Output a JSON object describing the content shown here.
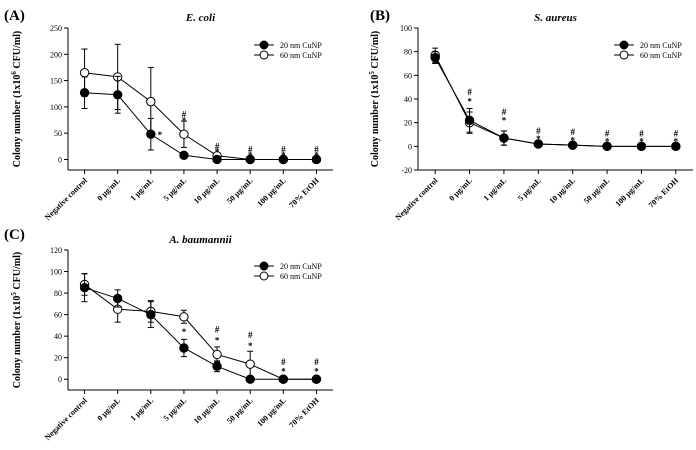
{
  "figure": {
    "legend_labels": [
      "20 nm CuNP",
      "60 nm CuNP"
    ],
    "colors": {
      "axis": "#000000",
      "series_20nm_fill": "#000000",
      "series_60nm_fill": "#ffffff"
    }
  },
  "chart_data": [
    {
      "type": "line",
      "panel_label": "(A)",
      "title": "E. coli",
      "ylabel_parts": [
        "Colony number (1x10",
        "6",
        " CFU/ml)"
      ],
      "xlabel": "",
      "categories": [
        "Negative control",
        "0 μg/mL",
        "1 μg/mL",
        "5 μg/mL",
        "10 μg/mL",
        "50 μg/mL",
        "100 μg/mL",
        "70% EtOH"
      ],
      "ylim": [
        -20,
        250
      ],
      "yticks": [
        0,
        50,
        100,
        150,
        200,
        250
      ],
      "legend_position": "top-right",
      "series": [
        {
          "name": "20 nm CuNP",
          "marker": "filled-circle",
          "values": [
            127,
            123,
            48,
            8,
            0,
            0,
            0,
            0
          ],
          "errors": [
            30,
            35,
            30,
            3,
            2,
            0,
            0,
            0
          ]
        },
        {
          "name": "60 nm CuNP",
          "marker": "open-circle",
          "values": [
            165,
            157,
            110,
            48,
            7,
            0,
            0,
            0
          ],
          "errors": [
            45,
            62,
            65,
            25,
            3,
            0,
            0,
            0
          ]
        }
      ],
      "annotations": [
        {
          "category_index": 2,
          "text": "*",
          "y": 48,
          "placement": "right"
        },
        {
          "category_index": 3,
          "text": "*",
          "y": 73
        },
        {
          "category_index": 3,
          "text": "#",
          "y": 86
        },
        {
          "category_index": 4,
          "text": "*",
          "y": 14
        },
        {
          "category_index": 4,
          "text": "#",
          "y": 25
        },
        {
          "category_index": 5,
          "text": "*",
          "y": 8
        },
        {
          "category_index": 5,
          "text": "#",
          "y": 19
        },
        {
          "category_index": 6,
          "text": "*",
          "y": 8
        },
        {
          "category_index": 6,
          "text": "#",
          "y": 19
        },
        {
          "category_index": 7,
          "text": "*",
          "y": 8
        },
        {
          "category_index": 7,
          "text": "#",
          "y": 19
        }
      ]
    },
    {
      "type": "line",
      "panel_label": "(B)",
      "title": "S. aureus",
      "ylabel_parts": [
        "Colony number (1x10",
        "5",
        " CFU/ml)"
      ],
      "xlabel": "",
      "categories": [
        "Negative control",
        "0 μg/mL",
        "1 μg/mL",
        "5 μg/mL",
        "10 μg/mL",
        "50 μg/mL",
        "100 μg/mL",
        "70% EtOH"
      ],
      "ylim": [
        -20,
        100
      ],
      "yticks": [
        -20,
        0,
        20,
        40,
        60,
        80,
        100
      ],
      "legend_position": "top-right",
      "series": [
        {
          "name": "20 nm CuNP",
          "marker": "filled-circle",
          "values": [
            75,
            22,
            7,
            2,
            1,
            0,
            0,
            0
          ],
          "errors": [
            5,
            10,
            6,
            1,
            1,
            0,
            0,
            0
          ]
        },
        {
          "name": "60 nm CuNP",
          "marker": "open-circle",
          "values": [
            77,
            20,
            7,
            2,
            1,
            0,
            0,
            0
          ],
          "errors": [
            6,
            9,
            6,
            1,
            1,
            0,
            0,
            0
          ]
        }
      ],
      "annotations": [
        {
          "category_index": 1,
          "text": "*",
          "y": 38
        },
        {
          "category_index": 1,
          "text": "#",
          "y": 46
        },
        {
          "category_index": 2,
          "text": "*",
          "y": 22
        },
        {
          "category_index": 2,
          "text": "#",
          "y": 29
        },
        {
          "category_index": 3,
          "text": "*",
          "y": 6
        },
        {
          "category_index": 3,
          "text": "#",
          "y": 13
        },
        {
          "category_index": 4,
          "text": "*",
          "y": 5
        },
        {
          "category_index": 4,
          "text": "#",
          "y": 12
        },
        {
          "category_index": 5,
          "text": "*",
          "y": 4
        },
        {
          "category_index": 5,
          "text": "#",
          "y": 11
        },
        {
          "category_index": 6,
          "text": "*",
          "y": 4
        },
        {
          "category_index": 6,
          "text": "#",
          "y": 11
        },
        {
          "category_index": 7,
          "text": "*",
          "y": 4
        },
        {
          "category_index": 7,
          "text": "#",
          "y": 11
        }
      ]
    },
    {
      "type": "line",
      "panel_label": "(C)",
      "title": "A. baumannii",
      "ylabel_parts": [
        "Colony number (1x10",
        "5",
        " CFU/ml)"
      ],
      "xlabel": "",
      "categories": [
        "Negative control",
        "0 μg/mL",
        "1 μg/mL",
        "5 μg/mL",
        "10 μg/mL",
        "50 μg/mL",
        "100 μg/mL",
        "70% EtOH"
      ],
      "ylim": [
        -10,
        120
      ],
      "yticks": [
        0,
        20,
        40,
        60,
        80,
        100,
        120
      ],
      "legend_position": "top-right",
      "series": [
        {
          "name": "20 nm CuNP",
          "marker": "filled-circle",
          "values": [
            85,
            75,
            60,
            29,
            12,
            0,
            0,
            0
          ],
          "errors": [
            13,
            8,
            12,
            8,
            5,
            0,
            0,
            0
          ]
        },
        {
          "name": "60 nm CuNP",
          "marker": "open-circle",
          "values": [
            88,
            65,
            63,
            58,
            23,
            14,
            0,
            0
          ],
          "errors": [
            10,
            12,
            10,
            6,
            7,
            12,
            0,
            0
          ]
        }
      ],
      "annotations": [
        {
          "category_index": 3,
          "text": "*",
          "y": 44
        },
        {
          "category_index": 4,
          "text": "*",
          "y": 36
        },
        {
          "category_index": 4,
          "text": "#",
          "y": 46
        },
        {
          "category_index": 5,
          "text": "*",
          "y": 31
        },
        {
          "category_index": 5,
          "text": "#",
          "y": 41
        },
        {
          "category_index": 6,
          "text": "*",
          "y": 7
        },
        {
          "category_index": 6,
          "text": "#",
          "y": 16
        },
        {
          "category_index": 7,
          "text": "*",
          "y": 7
        },
        {
          "category_index": 7,
          "text": "#",
          "y": 16
        }
      ]
    }
  ]
}
